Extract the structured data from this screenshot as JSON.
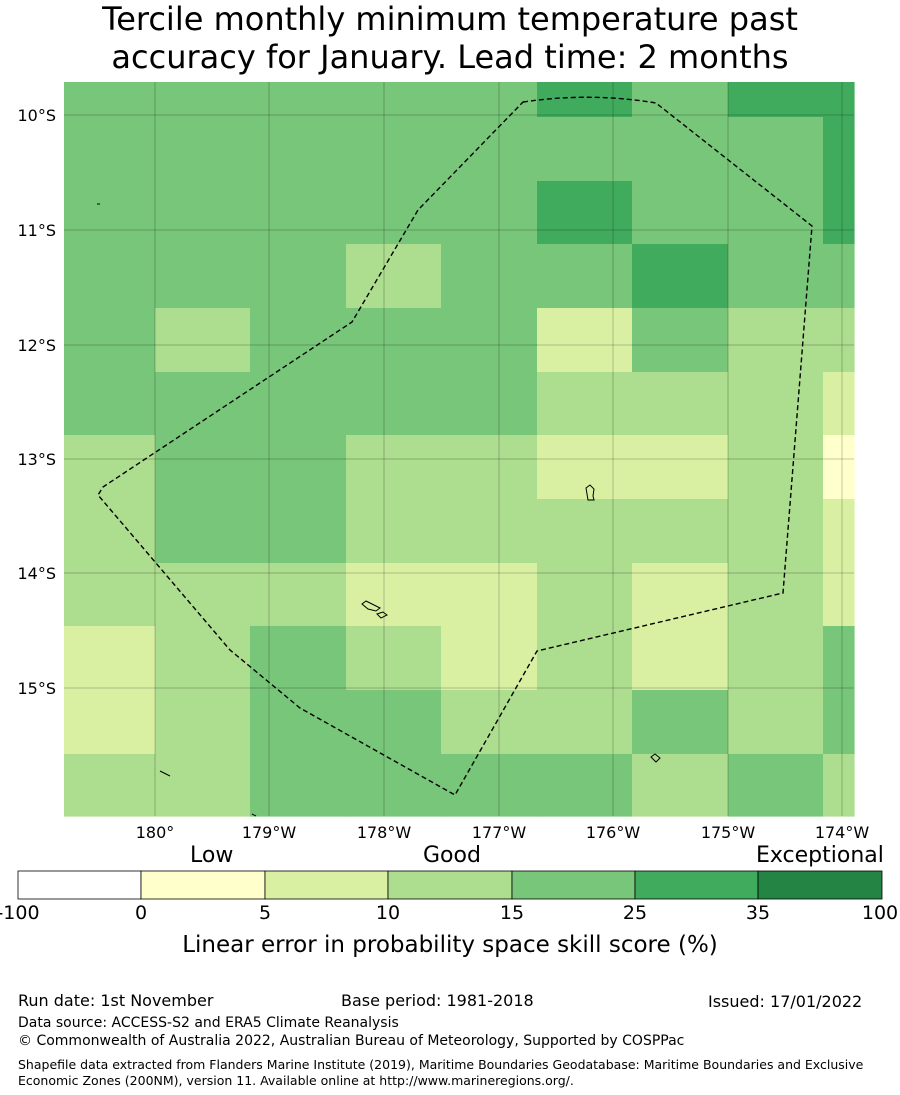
{
  "title": {
    "line1": "Tercile monthly minimum temperature past",
    "line2": "accuracy for January. Lead time: 2 months"
  },
  "map": {
    "lat_labels": [
      "10°S",
      "11°S",
      "12°S",
      "13°S",
      "14°S",
      "15°S"
    ],
    "lon_labels": [
      "180°",
      "179°W",
      "178°W",
      "177°W",
      "176°W",
      "175°W",
      "174°W"
    ],
    "grid_columns": 9,
    "grid_rows": 12,
    "colors": {
      "c0": "#ffffff",
      "c1": "#ffffcc",
      "c2": "#d9f0a3",
      "c3": "#addd8e",
      "c4": "#78c679",
      "c5": "#41ab5d",
      "c6": "#238443"
    },
    "cells": [
      [
        4,
        4,
        4,
        4,
        4,
        5,
        4,
        5,
        5
      ],
      [
        4,
        4,
        4,
        4,
        4,
        4,
        4,
        4,
        5
      ],
      [
        4,
        4,
        4,
        4,
        4,
        5,
        4,
        4,
        5
      ],
      [
        4,
        4,
        4,
        3,
        4,
        4,
        5,
        4,
        4
      ],
      [
        4,
        3,
        4,
        4,
        4,
        2,
        4,
        3,
        3
      ],
      [
        4,
        4,
        4,
        4,
        4,
        3,
        3,
        3,
        2
      ],
      [
        3,
        4,
        4,
        3,
        3,
        2,
        2,
        3,
        1
      ],
      [
        3,
        4,
        4,
        3,
        3,
        3,
        3,
        3,
        2
      ],
      [
        3,
        3,
        3,
        2,
        2,
        3,
        2,
        3,
        2
      ],
      [
        2,
        3,
        4,
        3,
        2,
        3,
        2,
        3,
        4
      ],
      [
        2,
        3,
        4,
        4,
        3,
        3,
        4,
        3,
        4
      ],
      [
        3,
        3,
        4,
        4,
        4,
        4,
        3,
        4,
        3
      ]
    ]
  },
  "colorbar": {
    "categories": [
      "Low",
      "Good",
      "Exceptional"
    ],
    "ticks": [
      "-100",
      "0",
      "5",
      "10",
      "15",
      "25",
      "35",
      "100"
    ],
    "label": "Linear error in probability space skill score (%)"
  },
  "footer": {
    "run_date": "Run date: 1st November",
    "base_period": "Base period: 1981-2018",
    "issued": "Issued: 17/01/2022",
    "data_source": "Data source: ACCESS-S2 and ERA5 Climate Reanalysis",
    "copyright": "© Commonwealth of Australia 2022, Australian Bureau of Meteorology, Supported by COSPPac",
    "shapefile": "Shapefile data extracted from Flanders Marine Institute (2019), Maritime Boundaries Geodatabase: Maritime Boundaries and Exclusive Economic Zones (200NM), version 11. Available online at http://www.marineregions.org/."
  }
}
